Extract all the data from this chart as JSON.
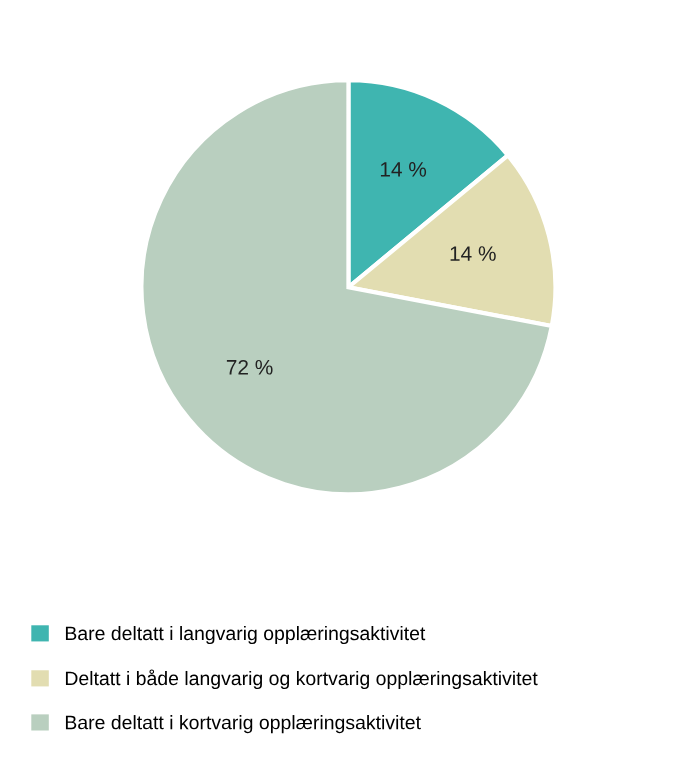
{
  "chart_data": {
    "type": "pie",
    "categories": [
      "Bare deltatt i langvarig opplæringsaktivitet",
      "Deltatt i både langvarig og kortvarig opplæringsaktivitet",
      "Bare deltatt i kortvarig opplæringsaktivitet"
    ],
    "values": [
      14,
      14,
      72
    ],
    "colors": [
      "#3fb5b0",
      "#e2ddb1",
      "#b9cfbf"
    ],
    "value_labels": [
      "14 %",
      "14 %",
      "72 %"
    ],
    "legend": "bottom"
  }
}
